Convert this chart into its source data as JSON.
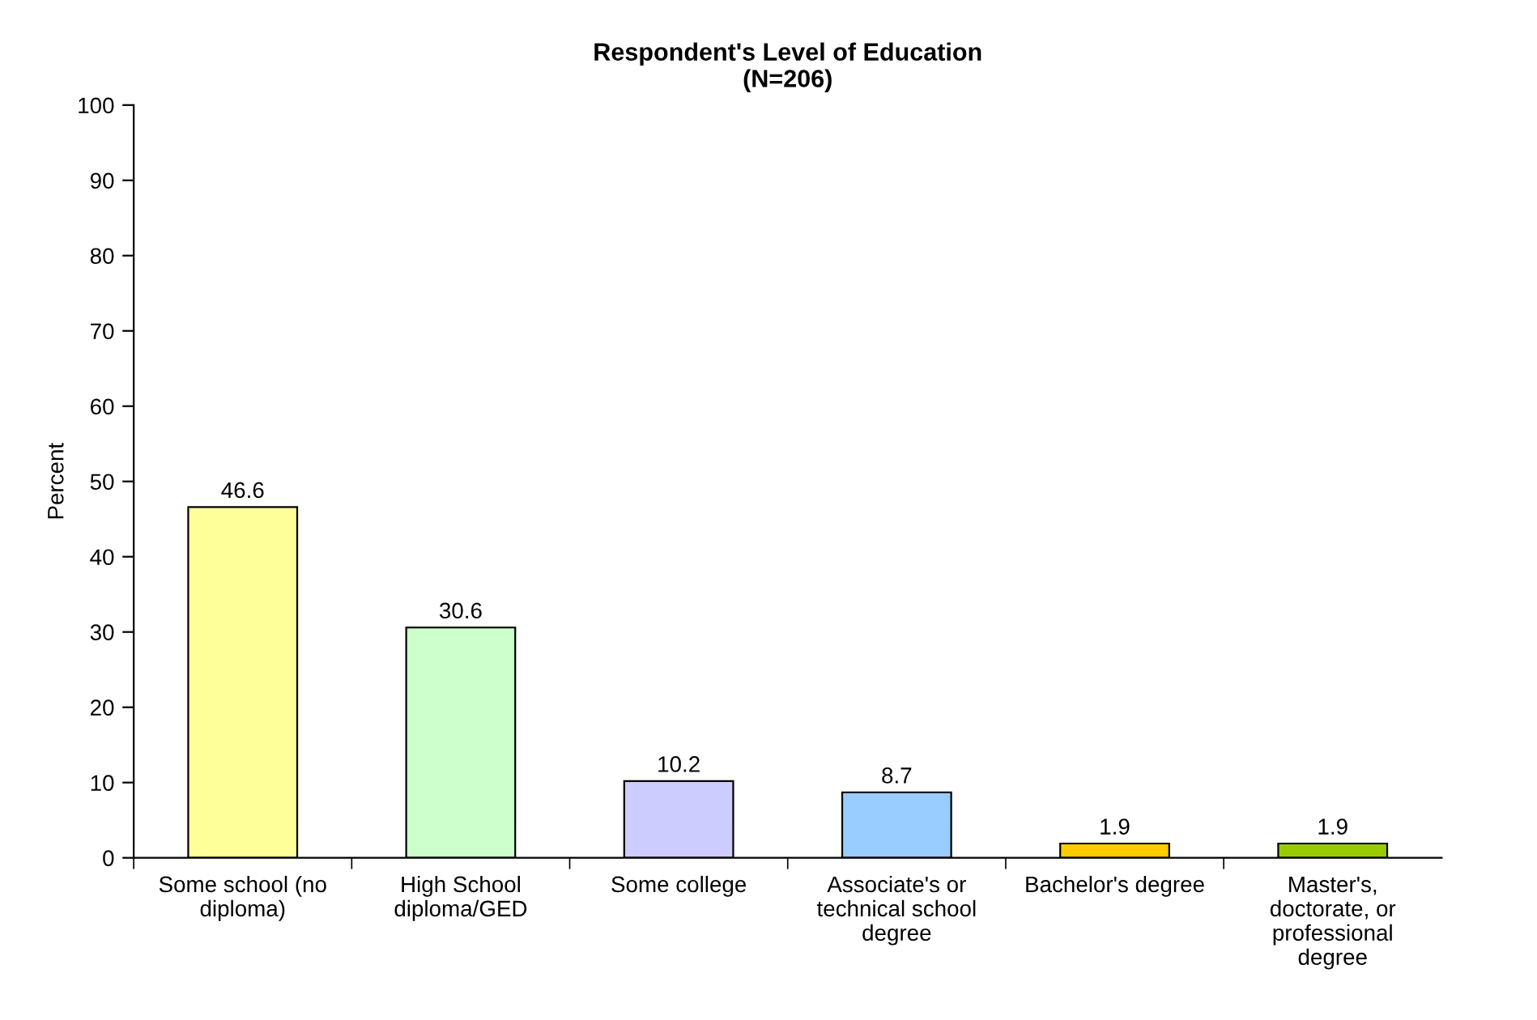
{
  "chart_data": {
    "type": "bar",
    "title": "Respondent's Level of Education\n(N=206)",
    "ylabel": "Percent",
    "categories": [
      "Some school (no diploma)",
      "High School diploma/GED",
      "Some college",
      "Associate's or technical school degree",
      "Bachelor's degree",
      "Master's, doctorate, or professional degree"
    ],
    "values": [
      46.6,
      30.6,
      10.2,
      8.7,
      1.9,
      1.9
    ],
    "colors": [
      "#ffff99",
      "#ccffcc",
      "#ccccff",
      "#99ccff",
      "#ffcc00",
      "#99cc00"
    ],
    "ylim": [
      0,
      100
    ],
    "yticks": [
      0,
      10,
      20,
      30,
      40,
      50,
      60,
      70,
      80,
      90,
      100
    ],
    "data_labels": true,
    "grid": false,
    "legend": false
  }
}
